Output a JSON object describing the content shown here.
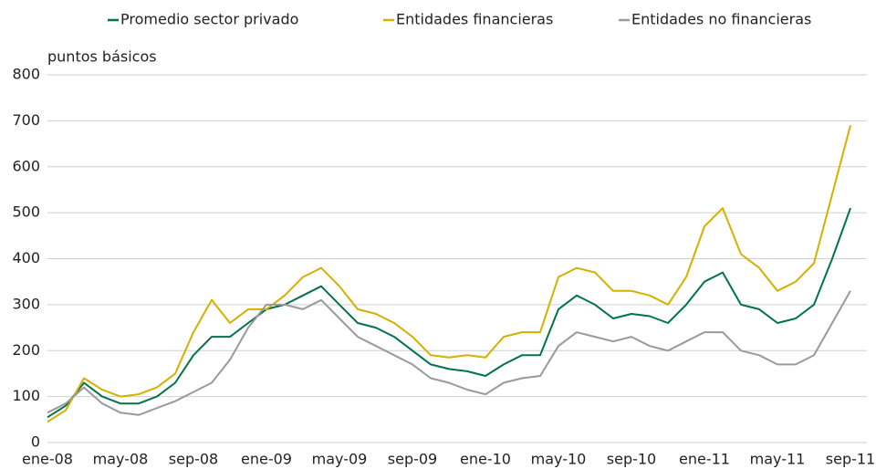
{
  "chart_data": {
    "type": "line",
    "y_axis_label": "puntos básicos",
    "categories": [
      "ene-08",
      null,
      null,
      null,
      "may-08",
      null,
      null,
      null,
      "sep-08",
      null,
      null,
      null,
      "ene-09",
      null,
      null,
      null,
      "may-09",
      null,
      null,
      null,
      "sep-09",
      null,
      null,
      null,
      "ene-10",
      null,
      null,
      null,
      "may-10",
      null,
      null,
      null,
      "sep-10",
      null,
      null,
      null,
      "ene-11",
      null,
      null,
      null,
      "may-11",
      null,
      null,
      null,
      "sep-11"
    ],
    "series": [
      {
        "name": "Promedio sector privado",
        "color": "#00734a",
        "values": [
          55,
          80,
          130,
          100,
          85,
          85,
          100,
          130,
          190,
          230,
          230,
          260,
          290,
          300,
          320,
          340,
          300,
          260,
          250,
          230,
          200,
          170,
          160,
          155,
          145,
          170,
          190,
          190,
          290,
          320,
          300,
          270,
          280,
          275,
          260,
          300,
          350,
          370,
          300,
          290,
          260,
          270,
          300,
          400,
          510
        ]
      },
      {
        "name": "Entidades financieras",
        "color": "#d4b000",
        "values": [
          45,
          70,
          140,
          115,
          100,
          105,
          120,
          150,
          240,
          310,
          260,
          290,
          290,
          320,
          360,
          380,
          340,
          290,
          280,
          260,
          230,
          190,
          185,
          190,
          185,
          230,
          240,
          240,
          360,
          380,
          370,
          330,
          330,
          320,
          300,
          360,
          470,
          510,
          410,
          380,
          330,
          350,
          390,
          540,
          690
        ]
      },
      {
        "name": "Entidades no financieras",
        "color": "#9a9a9a",
        "values": [
          65,
          85,
          120,
          85,
          65,
          60,
          75,
          90,
          110,
          130,
          180,
          250,
          300,
          300,
          290,
          310,
          270,
          230,
          210,
          190,
          170,
          140,
          130,
          115,
          105,
          130,
          140,
          145,
          210,
          240,
          230,
          220,
          230,
          210,
          200,
          220,
          240,
          240,
          200,
          190,
          170,
          170,
          190,
          260,
          330
        ]
      }
    ],
    "ylim": [
      0,
      800
    ],
    "yticks": [
      0,
      100,
      200,
      300,
      400,
      500,
      600,
      700,
      800
    ],
    "grid": true,
    "legend": "top"
  }
}
